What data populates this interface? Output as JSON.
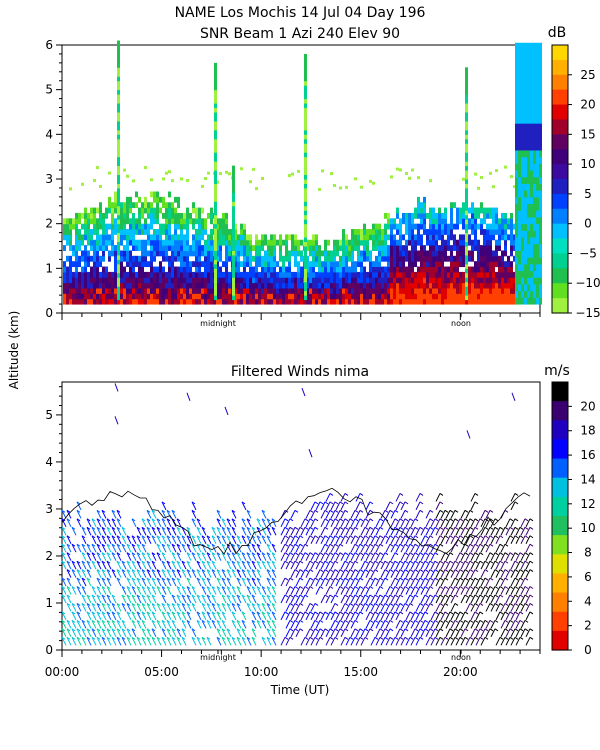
{
  "chart_data": [
    {
      "type": "heatmap",
      "title": "NAME Los Mochis    14 Jul 04 Day 196",
      "subtitle": "SNR Beam 1 Azi 240 Elev 90",
      "ylabel": "Altitude (km)",
      "ylim": [
        0,
        6
      ],
      "y_ticks": [
        "0",
        "1",
        "2",
        "3",
        "4",
        "5",
        "6"
      ],
      "x_marker_labels": [
        "midnight",
        "noon"
      ],
      "colorbar": {
        "unit": "dB",
        "min": -15,
        "max": 30,
        "ticks": [
          "25",
          "20",
          "15",
          "10",
          "5",
          "0",
          "−5",
          "−10",
          "−15"
        ],
        "colors": [
          "#ffd700",
          "#ffb000",
          "#ff8000",
          "#ff4000",
          "#e00000",
          "#a0002a",
          "#600060",
          "#40007a",
          "#3c0aa0",
          "#2020c0",
          "#0040ff",
          "#0080ff",
          "#00c0ff",
          "#00e0c0",
          "#00d090",
          "#20c050",
          "#60e020",
          "#a0f040"
        ]
      },
      "x_range_hours": [
        0,
        24
      ]
    },
    {
      "type": "vector-field",
      "title": "Filtered Winds nima",
      "ylabel": "Altitude (km)",
      "xlabel": "Time (UT)",
      "ylim": [
        0,
        5.7
      ],
      "y_ticks": [
        "0",
        "1",
        "2",
        "3",
        "4",
        "5"
      ],
      "x_ticks": [
        "00:00",
        "05:00",
        "10:00",
        "15:00",
        "20:00"
      ],
      "x_marker_labels": [
        "midnight",
        "noon"
      ],
      "colorbar": {
        "unit": "m/s",
        "min": 0,
        "max": 22,
        "ticks": [
          "20",
          "18",
          "16",
          "14",
          "12",
          "10",
          "8",
          "6",
          "4",
          "2",
          "0"
        ],
        "colors": [
          "#000000",
          "#3a0070",
          "#2000c0",
          "#0000ff",
          "#0060ff",
          "#00c0e0",
          "#00d0a0",
          "#20c060",
          "#80e020",
          "#e0e000",
          "#ffb000",
          "#ff8000",
          "#ff4000",
          "#e00000"
        ]
      },
      "x_range_hours": [
        0,
        24
      ]
    }
  ]
}
